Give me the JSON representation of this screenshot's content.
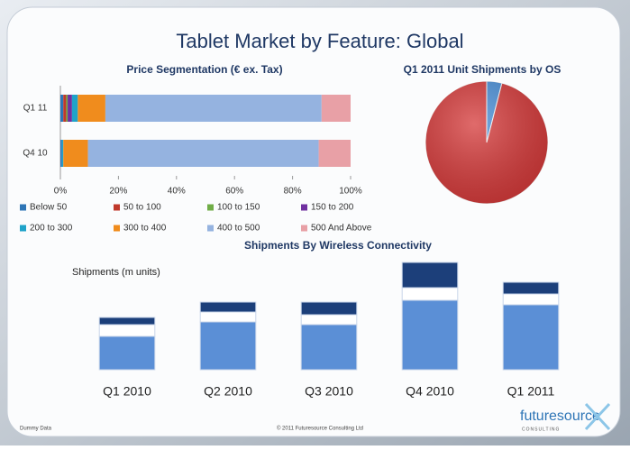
{
  "title": "Tablet Market by Feature: Global",
  "footer": {
    "note": "Dummy Data",
    "copyright": "© 2011 Futuresource Consulting Ltd",
    "logo": "futuresource",
    "logo_sub": "CONSULTING"
  },
  "chart_data": [
    {
      "type": "bar",
      "orientation": "horizontal",
      "stacked": true,
      "title": "Price Segmentation (€ ex. Tax)",
      "categories": [
        "Q1 11",
        "Q4 10"
      ],
      "series": [
        {
          "name": "Below 50",
          "color": "#2e75b6",
          "values": [
            1,
            0.5
          ]
        },
        {
          "name": "50 to 100",
          "color": "#c0392b",
          "values": [
            1,
            0
          ]
        },
        {
          "name": "100 to 150",
          "color": "#70ad47",
          "values": [
            0.5,
            0
          ]
        },
        {
          "name": "150 to 200",
          "color": "#7030a0",
          "values": [
            1.5,
            0
          ]
        },
        {
          "name": "200 to 300",
          "color": "#1fa3c9",
          "values": [
            2,
            0.5
          ]
        },
        {
          "name": "300 to 400",
          "color": "#f08c1d",
          "values": [
            9.5,
            8.5
          ]
        },
        {
          "name": "400 to 500",
          "color": "#95b3e0",
          "values": [
            74.5,
            79.5
          ]
        },
        {
          "name": "500 And Above",
          "color": "#e8a0a6",
          "values": [
            10,
            11
          ]
        }
      ],
      "xlim": [
        0,
        100
      ],
      "xticks": [
        {
          "value": 0,
          "label": "0%"
        },
        {
          "value": 20,
          "label": "20%"
        },
        {
          "value": 40,
          "label": "40%"
        },
        {
          "value": 60,
          "label": "60%"
        },
        {
          "value": 80,
          "label": "80%"
        },
        {
          "value": 100,
          "label": "100%"
        }
      ],
      "legend": "bottom"
    },
    {
      "type": "pie",
      "title": "Q1 2011 Unit Shipments by OS",
      "categories": [
        null,
        null
      ],
      "values": [
        4,
        96
      ],
      "colors": [
        "#4a90d9",
        "#d63a3a"
      ]
    },
    {
      "type": "bar",
      "orientation": "vertical",
      "stacked": true,
      "title": "Shipments By Wireless Connectivity",
      "y_label": "Shipments (m units)",
      "categories": [
        "Q1 2010",
        "Q2 2010",
        "Q3 2010",
        "Q4 2010",
        "Q1 2011"
      ],
      "series": [
        {
          "color": "#5b8fd6",
          "values": [
            37,
            53,
            50,
            77,
            72
          ]
        },
        {
          "color": "#ffffff",
          "values": [
            13,
            11,
            11,
            14,
            12
          ]
        },
        {
          "color": "#1c3f7a",
          "values": [
            8,
            11,
            14,
            28,
            13
          ]
        }
      ],
      "ylim": [
        0,
        130
      ]
    }
  ]
}
